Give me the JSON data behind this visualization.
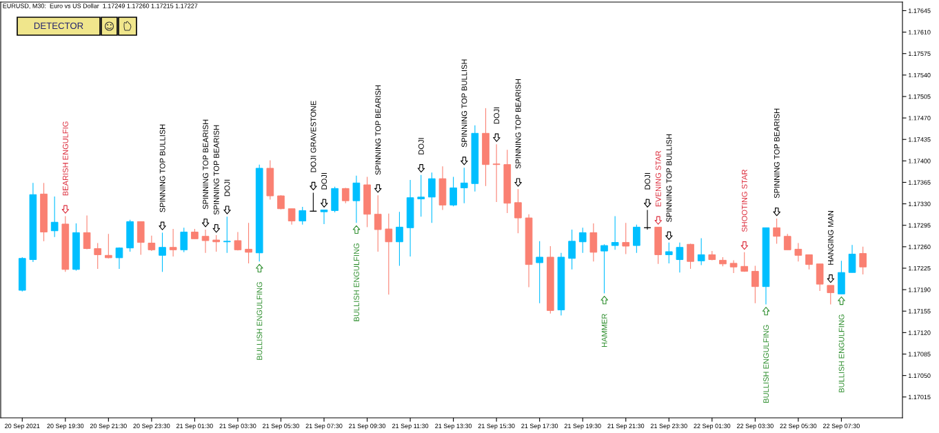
{
  "chart_data": {
    "type": "candlestick",
    "title": "EURUSD, M30:  Euro vs US Dollar  1.17249 1.17260 1.17215 1.17227",
    "x": [
      "2021-09-20T17:30",
      "2021-09-20T18:00",
      "2021-09-20T18:30",
      "2021-09-20T19:00",
      "2021-09-20T19:30",
      "2021-09-20T20:00",
      "2021-09-20T20:30",
      "2021-09-20T21:00",
      "2021-09-20T21:30",
      "2021-09-20T22:00",
      "2021-09-20T22:30",
      "2021-09-20T23:00",
      "2021-09-20T23:30",
      "2021-09-21T00:00",
      "2021-09-21T00:30",
      "2021-09-21T01:00",
      "2021-09-21T01:30",
      "2021-09-21T02:00",
      "2021-09-21T02:30",
      "2021-09-21T03:00",
      "2021-09-21T03:30",
      "2021-09-21T04:00",
      "2021-09-21T04:30",
      "2021-09-21T05:00",
      "2021-09-21T05:30",
      "2021-09-21T06:00",
      "2021-09-21T06:30",
      "2021-09-21T07:00",
      "2021-09-21T07:30",
      "2021-09-21T08:00",
      "2021-09-21T08:30",
      "2021-09-21T09:00",
      "2021-09-21T09:30",
      "2021-09-21T10:00",
      "2021-09-21T10:30",
      "2021-09-21T11:00",
      "2021-09-21T11:30",
      "2021-09-21T12:00",
      "2021-09-21T12:30",
      "2021-09-21T13:00",
      "2021-09-21T13:30",
      "2021-09-21T14:00",
      "2021-09-21T14:30",
      "2021-09-21T15:00",
      "2021-09-21T15:30",
      "2021-09-21T16:00",
      "2021-09-21T16:30",
      "2021-09-21T17:00",
      "2021-09-21T17:30",
      "2021-09-21T18:00",
      "2021-09-21T18:30",
      "2021-09-21T19:00",
      "2021-09-21T19:30",
      "2021-09-21T20:00",
      "2021-09-21T20:30",
      "2021-09-21T21:00",
      "2021-09-21T21:30",
      "2021-09-21T22:00",
      "2021-09-21T22:30",
      "2021-09-21T23:00",
      "2021-09-21T23:30",
      "2021-09-22T00:00",
      "2021-09-22T00:30",
      "2021-09-22T01:00",
      "2021-09-22T01:30",
      "2021-09-22T02:00",
      "2021-09-22T02:30",
      "2021-09-22T03:00",
      "2021-09-22T03:30",
      "2021-09-22T04:00",
      "2021-09-22T04:30",
      "2021-09-22T05:00",
      "2021-09-22T05:30",
      "2021-09-22T06:00",
      "2021-09-22T06:30",
      "2021-09-22T07:00",
      "2021-09-22T07:30",
      "2021-09-22T08:00",
      "2021-09-22T08:30"
    ],
    "ohlc": [
      [
        1.17189,
        1.17243,
        1.17187,
        1.17241
      ],
      [
        1.17239,
        1.17364,
        1.17235,
        1.17345
      ],
      [
        1.17346,
        1.17364,
        1.17269,
        1.17284
      ],
      [
        1.17286,
        1.17342,
        1.17276,
        1.173
      ],
      [
        1.17297,
        1.1731,
        1.17219,
        1.17223
      ],
      [
        1.17223,
        1.17298,
        1.17221,
        1.17283
      ],
      [
        1.17283,
        1.17311,
        1.17256,
        1.17257
      ],
      [
        1.17257,
        1.17266,
        1.17224,
        1.17247
      ],
      [
        1.17246,
        1.17281,
        1.17241,
        1.17242
      ],
      [
        1.17242,
        1.17259,
        1.17224,
        1.17258
      ],
      [
        1.17258,
        1.17304,
        1.17252,
        1.17301
      ],
      [
        1.17301,
        1.17301,
        1.17247,
        1.17267
      ],
      [
        1.17266,
        1.17278,
        1.17253,
        1.17255
      ],
      [
        1.17246,
        1.17283,
        1.17219,
        1.17259
      ],
      [
        1.17259,
        1.17289,
        1.17244,
        1.17255
      ],
      [
        1.17255,
        1.17291,
        1.17251,
        1.17284
      ],
      [
        1.17284,
        1.17289,
        1.17273,
        1.17273
      ],
      [
        1.17277,
        1.17288,
        1.1725,
        1.1727
      ],
      [
        1.17271,
        1.17279,
        1.17252,
        1.17268
      ],
      [
        1.17268,
        1.17309,
        1.1725,
        1.17269
      ],
      [
        1.1727,
        1.17284,
        1.17254,
        1.17255
      ],
      [
        1.17256,
        1.17299,
        1.17233,
        1.17251
      ],
      [
        1.1725,
        1.17394,
        1.17236,
        1.17388
      ],
      [
        1.17388,
        1.17401,
        1.17337,
        1.17343
      ],
      [
        1.17343,
        1.17344,
        1.17321,
        1.17322
      ],
      [
        1.17322,
        1.17322,
        1.17296,
        1.17302
      ],
      [
        1.17302,
        1.17325,
        1.17296,
        1.17319
      ],
      [
        1.17318,
        1.17348,
        1.17318,
        1.17318
      ],
      [
        1.17317,
        1.1732,
        1.17297,
        1.1732
      ],
      [
        1.17319,
        1.17358,
        1.17316,
        1.17355
      ],
      [
        1.17355,
        1.17356,
        1.17331,
        1.17335
      ],
      [
        1.17335,
        1.17376,
        1.17299,
        1.17364
      ],
      [
        1.17361,
        1.17374,
        1.17292,
        1.17313
      ],
      [
        1.17313,
        1.17344,
        1.17252,
        1.17288
      ],
      [
        1.17289,
        1.17314,
        1.17182,
        1.17268
      ],
      [
        1.17268,
        1.17317,
        1.17229,
        1.17292
      ],
      [
        1.17291,
        1.17369,
        1.17244,
        1.1734
      ],
      [
        1.17338,
        1.17377,
        1.17309,
        1.17341
      ],
      [
        1.17341,
        1.17381,
        1.17299,
        1.17371
      ],
      [
        1.17371,
        1.17391,
        1.1732,
        1.17328
      ],
      [
        1.17328,
        1.17374,
        1.17326,
        1.17356
      ],
      [
        1.17356,
        1.17389,
        1.17331,
        1.17364
      ],
      [
        1.17363,
        1.17458,
        1.1735,
        1.17445
      ],
      [
        1.17445,
        1.17486,
        1.17359,
        1.17394
      ],
      [
        1.17395,
        1.17427,
        1.17333,
        1.17394
      ],
      [
        1.17394,
        1.17418,
        1.17315,
        1.17331
      ],
      [
        1.17332,
        1.17354,
        1.17282,
        1.17307
      ],
      [
        1.17307,
        1.17313,
        1.17194,
        1.17231
      ],
      [
        1.17234,
        1.17269,
        1.17168,
        1.17243
      ],
      [
        1.17243,
        1.17261,
        1.17151,
        1.17156
      ],
      [
        1.17157,
        1.1725,
        1.17148,
        1.17243
      ],
      [
        1.17241,
        1.17288,
        1.17223,
        1.17269
      ],
      [
        1.17268,
        1.17291,
        1.1725,
        1.17283
      ],
      [
        1.17283,
        1.17298,
        1.17236,
        1.17251
      ],
      [
        1.17253,
        1.17264,
        1.17184,
        1.17262
      ],
      [
        1.17262,
        1.1731,
        1.17255,
        1.17267
      ],
      [
        1.17267,
        1.17299,
        1.17248,
        1.17261
      ],
      [
        1.17262,
        1.17296,
        1.1725,
        1.17292
      ],
      [
        1.17291,
        1.1732,
        1.17288,
        1.17291
      ],
      [
        1.17292,
        1.17292,
        1.17232,
        1.17247
      ],
      [
        1.17247,
        1.17267,
        1.17233,
        1.17252
      ],
      [
        1.17239,
        1.17267,
        1.17218,
        1.17259
      ],
      [
        1.17264,
        1.17265,
        1.17224,
        1.17236
      ],
      [
        1.17237,
        1.17274,
        1.1723,
        1.17247
      ],
      [
        1.17247,
        1.17253,
        1.17238,
        1.17239
      ],
      [
        1.17238,
        1.17243,
        1.17228,
        1.17232
      ],
      [
        1.17233,
        1.17238,
        1.17217,
        1.17227
      ],
      [
        1.17228,
        1.17251,
        1.17219,
        1.1722
      ],
      [
        1.1722,
        1.17229,
        1.17168,
        1.17195
      ],
      [
        1.17195,
        1.17291,
        1.17166,
        1.17291
      ],
      [
        1.17291,
        1.17306,
        1.17265,
        1.17277
      ],
      [
        1.17277,
        1.17281,
        1.17255,
        1.17255
      ],
      [
        1.17256,
        1.17266,
        1.17236,
        1.17246
      ],
      [
        1.17247,
        1.17247,
        1.17223,
        1.17231
      ],
      [
        1.17232,
        1.17232,
        1.17188,
        1.17199
      ],
      [
        1.17197,
        1.17197,
        1.17166,
        1.17185
      ],
      [
        1.17183,
        1.17237,
        1.17183,
        1.17218
      ],
      [
        1.17218,
        1.17263,
        1.17218,
        1.17248
      ],
      [
        1.17249,
        1.1726,
        1.17215,
        1.17227
      ]
    ],
    "colors": [
      "#00bfff",
      "#00bfff",
      "#fa8072",
      "#00bfff",
      "#fa8072",
      "#00bfff",
      "#fa8072",
      "#fa8072",
      "#fa8072",
      "#00bfff",
      "#00bfff",
      "#fa8072",
      "#fa8072",
      "#00bfff",
      "#fa8072",
      "#00bfff",
      "#fa8072",
      "#fa8072",
      "#fa8072",
      "#00bfff",
      "#fa8072",
      "#fa8072",
      "#00bfff",
      "#fa8072",
      "#fa8072",
      "#fa8072",
      "#00bfff",
      "#000000",
      "#00bfff",
      "#00bfff",
      "#fa8072",
      "#00bfff",
      "#fa8072",
      "#fa8072",
      "#fa8072",
      "#00bfff",
      "#00bfff",
      "#00bfff",
      "#00bfff",
      "#fa8072",
      "#00bfff",
      "#00bfff",
      "#00bfff",
      "#fa8072",
      "#fa8072",
      "#fa8072",
      "#fa8072",
      "#fa8072",
      "#00bfff",
      "#fa8072",
      "#00bfff",
      "#00bfff",
      "#00bfff",
      "#fa8072",
      "#00bfff",
      "#00bfff",
      "#fa8072",
      "#00bfff",
      "#000000",
      "#fa8072",
      "#00bfff",
      "#00bfff",
      "#fa8072",
      "#00bfff",
      "#fa8072",
      "#fa8072",
      "#fa8072",
      "#fa8072",
      "#fa8072",
      "#00bfff",
      "#fa8072",
      "#fa8072",
      "#fa8072",
      "#fa8072",
      "#fa8072",
      "#fa8072",
      "#00bfff",
      "#00bfff",
      "#fa8072"
    ],
    "xlim": [
      "2021-09-20T16:30",
      "2021-09-22T10:20"
    ],
    "xticks": [
      {
        "value": "2021-09-20T17:30",
        "label": "20 Sep 2021"
      },
      {
        "value": "2021-09-20T19:30",
        "label": "20 Sep 19:30"
      },
      {
        "value": "2021-09-20T21:30",
        "label": "20 Sep 21:30"
      },
      {
        "value": "2021-09-20T23:30",
        "label": "20 Sep 23:30"
      },
      {
        "value": "2021-09-21T01:30",
        "label": "21 Sep 01:30"
      },
      {
        "value": "2021-09-21T03:30",
        "label": "21 Sep 03:30"
      },
      {
        "value": "2021-09-21T05:30",
        "label": "21 Sep 05:30"
      },
      {
        "value": "2021-09-21T07:30",
        "label": "21 Sep 07:30"
      },
      {
        "value": "2021-09-21T09:30",
        "label": "21 Sep 09:30"
      },
      {
        "value": "2021-09-21T11:30",
        "label": "21 Sep 11:30"
      },
      {
        "value": "2021-09-21T13:30",
        "label": "21 Sep 13:30"
      },
      {
        "value": "2021-09-21T15:30",
        "label": "21 Sep 15:30"
      },
      {
        "value": "2021-09-21T17:30",
        "label": "21 Sep 17:30"
      },
      {
        "value": "2021-09-21T19:30",
        "label": "21 Sep 19:30"
      },
      {
        "value": "2021-09-21T21:30",
        "label": "21 Sep 21:30"
      },
      {
        "value": "2021-09-21T23:30",
        "label": "21 Sep 23:30"
      },
      {
        "value": "2021-09-22T01:30",
        "label": "22 Sep 01:30"
      },
      {
        "value": "2021-09-22T03:30",
        "label": "22 Sep 03:30"
      },
      {
        "value": "2021-09-22T05:30",
        "label": "22 Sep 05:30"
      },
      {
        "value": "2021-09-22T07:30",
        "label": "22 Sep 07:30"
      }
    ],
    "ylim": [
      1.16981,
      1.17659
    ],
    "yticks": [
      1.17015,
      {
        "value": 1.1705,
        "label": "1.17050"
      },
      1.17085,
      {
        "value": 1.1712,
        "label": "1.17120"
      },
      1.17155,
      {
        "value": 1.1719,
        "label": "1.17190"
      },
      1.17225,
      {
        "value": 1.1726,
        "label": "1.17260"
      },
      1.17295,
      {
        "value": 1.1733,
        "label": "1.17330"
      },
      1.17365,
      {
        "value": 1.174,
        "label": "1.17400"
      },
      1.17435,
      {
        "value": 1.1747,
        "label": "1.17470"
      },
      1.17505,
      {
        "value": 1.1754,
        "label": "1.17540"
      },
      1.17575,
      {
        "value": 1.1761,
        "label": "1.17610"
      },
      1.17645
    ],
    "annotations": [
      "DETECTOR",
      {
        "text": "BEARISH ENGULFIG",
        "x": "2021-09-20T19:30",
        "y": 1.1731
      },
      {
        "text": "SPINNING TOP BULLISH",
        "x": "2021-09-21T00:00",
        "y": 1.17283
      },
      {
        "text": "SPINNING TOP BEARISH",
        "x": "2021-09-21T02:00",
        "y": 1.17288
      },
      {
        "text": "SPINNING TOP BEARISH",
        "x": "2021-09-21T02:30",
        "y": 1.17279
      },
      {
        "text": "DOJI",
        "x": "2021-09-21T03:00",
        "y": 1.17309
      },
      {
        "text": "BULLISH ENGULFING",
        "x": "2021-09-21T04:30",
        "y": 1.17236
      },
      {
        "text": "DOJI GRAVESTONE",
        "x": "2021-09-21T07:00",
        "y": 1.17348
      },
      {
        "text": "DOJI",
        "x": "2021-09-21T07:30",
        "y": 1.1732
      },
      {
        "text": "BULLISH ENGULFING",
        "x": "2021-09-21T09:00",
        "y": 1.17299
      },
      {
        "text": "SPINNING TOP BEARISH",
        "x": "2021-09-21T10:00",
        "y": 1.17344
      },
      {
        "text": "DOJI",
        "x": "2021-09-21T12:00",
        "y": 1.17377
      },
      {
        "text": "SPINNING TOP BULLISH",
        "x": "2021-09-21T14:00",
        "y": 1.17389
      },
      {
        "text": "DOJI",
        "x": "2021-09-21T15:30",
        "y": 1.17427
      },
      {
        "text": "SPINNING TOP BEARISH",
        "x": "2021-09-21T16:30",
        "y": 1.17354
      },
      {
        "text": "HAMMER",
        "x": "2021-09-21T20:30",
        "y": 1.17184
      },
      {
        "text": "DOJI",
        "x": "2021-09-21T22:30",
        "y": 1.1732
      },
      {
        "text": "EVENING STAR",
        "x": "2021-09-21T23:00",
        "y": 1.17292
      },
      {
        "text": "SPINNING TOP BULLISH",
        "x": "2021-09-21T23:30",
        "y": 1.17267
      },
      {
        "text": "SHOOTING STAR",
        "x": "2021-09-22T03:00",
        "y": 1.17251
      },
      {
        "text": "BULLISH ENGULFING",
        "x": "2021-09-22T04:00",
        "y": 1.17166
      },
      {
        "text": "SPINNING TOP BEARISH",
        "x": "2021-09-22T04:30",
        "y": 1.17306
      },
      {
        "text": "HANGING MAN",
        "x": "2021-09-22T07:00",
        "y": 1.17197
      },
      {
        "text": "BULLISH ENGULFING",
        "x": "2021-09-22T07:30",
        "y": 1.17183
      }
    ]
  }
}
